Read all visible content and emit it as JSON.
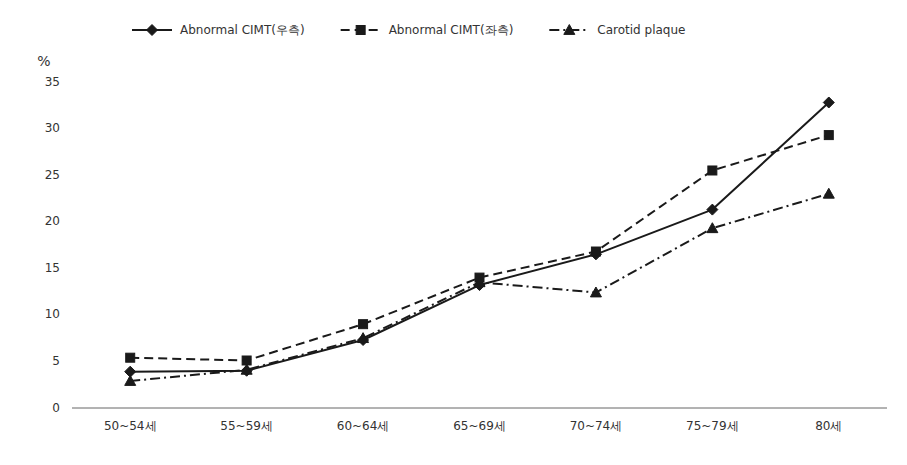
{
  "chart_data": {
    "type": "line",
    "ylabel": "%",
    "categories": [
      "50~54세",
      "55~59세",
      "60~64세",
      "65~69세",
      "70~74세",
      "75~79세",
      "80세"
    ],
    "series": [
      {
        "name": "Abnormal CIMT(우측)",
        "color": "#1a1a1a",
        "marker": "diamond",
        "line_style": "solid",
        "values": [
          3.9,
          4.0,
          7.3,
          13.2,
          16.5,
          21.3,
          32.8
        ]
      },
      {
        "name": "Abnormal CIMT(좌측)",
        "color": "#1a1a1a",
        "marker": "square",
        "line_style": "dashed",
        "values": [
          5.4,
          5.1,
          9.0,
          14.0,
          16.8,
          25.5,
          29.3
        ]
      },
      {
        "name": "Carotid plaque",
        "color": "#1a1a1a",
        "marker": "triangle",
        "line_style": "dashdot",
        "values": [
          2.9,
          4.1,
          7.5,
          13.5,
          12.4,
          19.3,
          23.0
        ]
      }
    ],
    "ylim": [
      0,
      35
    ],
    "yticks": [
      0,
      5,
      10,
      15,
      20,
      25,
      30,
      35
    ],
    "grid": false,
    "legend": "top"
  }
}
